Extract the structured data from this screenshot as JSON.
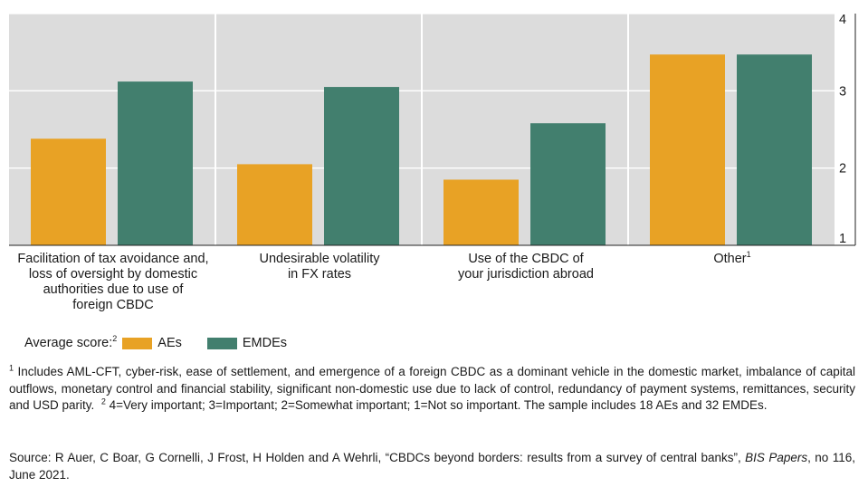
{
  "chart_data": {
    "type": "bar",
    "categories": [
      {
        "text": "Facilitation of tax avoidance and,\nloss of oversight by domestic\nauthorities due to use of\nforeign CBDC",
        "sup": ""
      },
      {
        "text": "Undesirable volatility\nin FX rates",
        "sup": ""
      },
      {
        "text": "Use of the CBDC of\nyour jurisdiction abroad",
        "sup": ""
      },
      {
        "text": "Other",
        "sup": "1"
      }
    ],
    "series": [
      {
        "name": "AEs",
        "color": "#E8A225",
        "values": [
          2.38,
          2.05,
          1.85,
          3.47
        ]
      },
      {
        "name": "EMDEs",
        "color": "#427F6E",
        "values": [
          3.12,
          3.05,
          2.58,
          3.47
        ]
      }
    ],
    "ylim": [
      1,
      4
    ],
    "yticks": [
      1,
      2,
      3,
      4
    ],
    "plot_background": "#DCDCDC",
    "grid": true,
    "legend_title": "Average score:",
    "legend_title_sup": "2",
    "legend_position": "bottom-left"
  },
  "notes": {
    "footnote_marker_1": "1",
    "footnote_1": "Includes AML-CFT, cyber-risk, ease of settlement, and emergence of a foreign CBDC as a dominant vehicle in the domestic market, imbalance of capital outflows, monetary control and financial stability, significant non-domestic use due to lack of control, redundancy of payment systems, remittances, security and USD parity.",
    "footnote_marker_2": "2",
    "footnote_2": "4=Very important; 3=Important; 2=Somewhat important; 1=Not so important. The sample includes 18 AEs and 32 EMDEs.",
    "source_prefix": "Source: R Auer, C Boar, G Cornelli, J Frost, H Holden and A Wehrli, “CBDCs beyond borders: results from a survey of central banks”,",
    "source_journal": "BIS Papers",
    "source_suffix": ", no 116, June 2021."
  }
}
